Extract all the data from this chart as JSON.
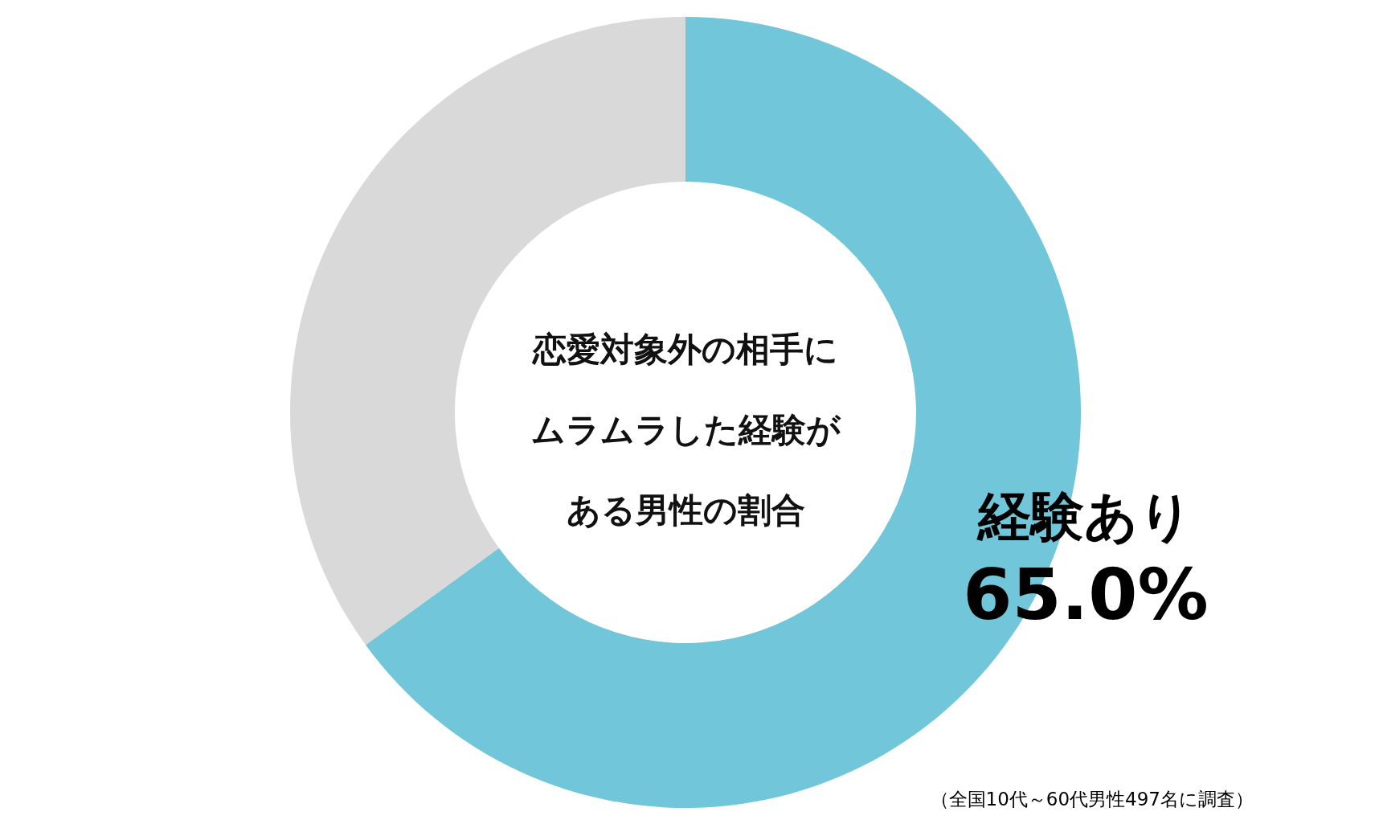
{
  "chart_data": {
    "type": "donut",
    "title": "恋愛対象外の相手にムラムラした経験がある男性の割合",
    "categories": [
      "経験あり",
      null
    ],
    "values": [
      65,
      35
    ],
    "value_labels": [
      "65.0%",
      null
    ],
    "colors": [
      "#72c6d9",
      "#d9d9d9"
    ],
    "annotations": [
      "（全国10代～60代男性497名に調査）"
    ]
  }
}
